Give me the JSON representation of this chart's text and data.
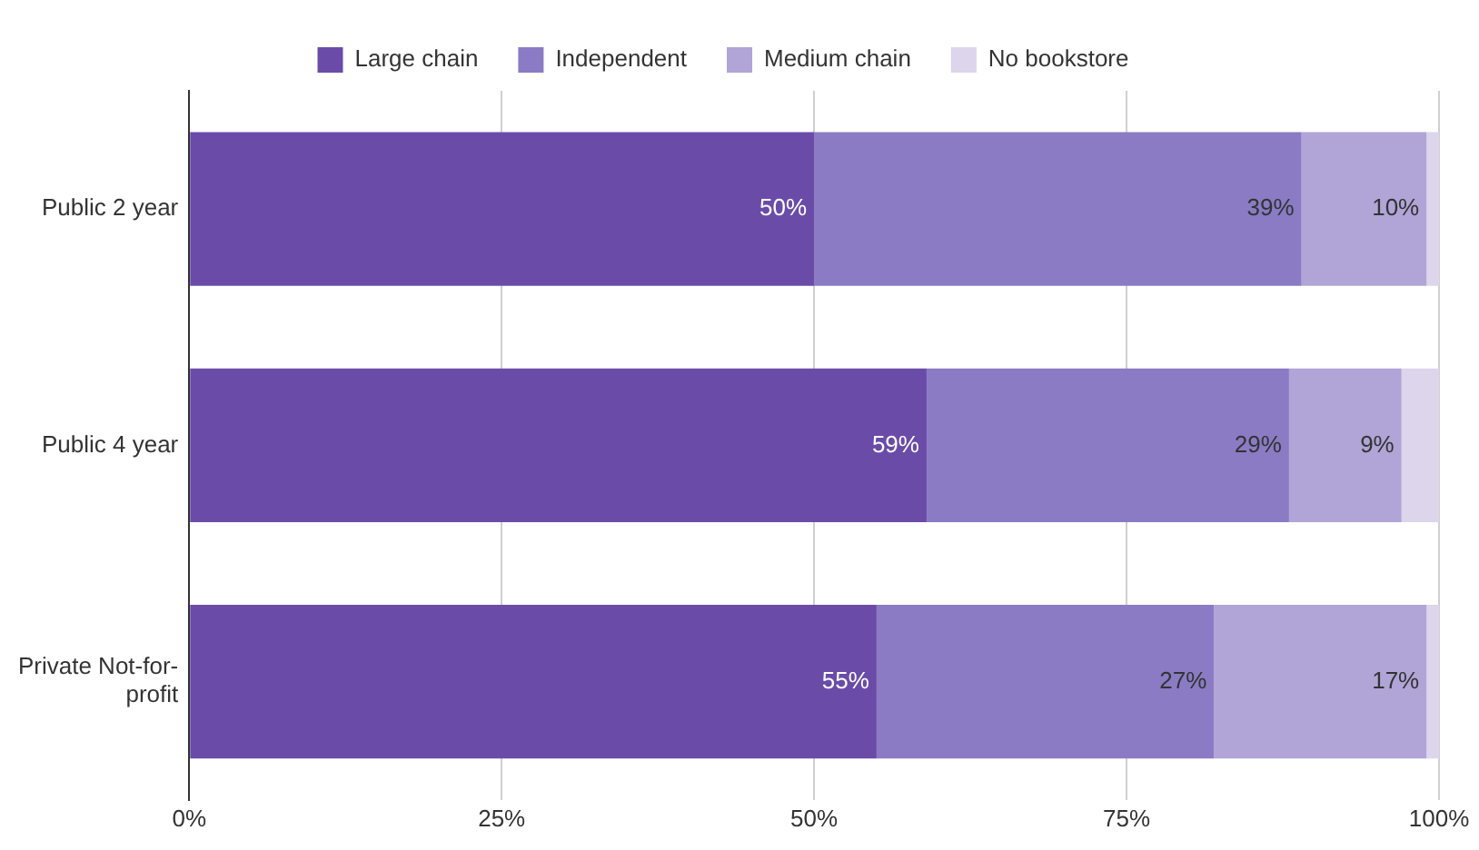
{
  "chart_data": {
    "type": "bar",
    "orientation": "horizontal",
    "stacked": true,
    "categories": [
      "Public 2 year",
      "Public 4 year",
      "Private Not-for-profit"
    ],
    "series": [
      {
        "name": "Large chain",
        "color": "#6a4ca8",
        "values": [
          50,
          59,
          55
        ],
        "value_labels": [
          "50%",
          "59%",
          "55%"
        ]
      },
      {
        "name": "Independent",
        "color": "#8b7bc4",
        "values": [
          39,
          29,
          27
        ],
        "value_labels": [
          "39%",
          "29%",
          "27%"
        ]
      },
      {
        "name": "Medium chain",
        "color": "#b1a4d6",
        "values": [
          10,
          9,
          17
        ],
        "value_labels": [
          "10%",
          "9%",
          "17%"
        ]
      },
      {
        "name": "No bookstore",
        "color": "#dcd5ec",
        "values": [
          1,
          3,
          1
        ],
        "value_labels": [
          null,
          null,
          null
        ]
      }
    ],
    "xlim": [
      0,
      100
    ],
    "xticks": [
      {
        "value": 0,
        "label": "0%"
      },
      {
        "value": 25,
        "label": "25%"
      },
      {
        "value": 50,
        "label": "50%"
      },
      {
        "value": 75,
        "label": "75%"
      },
      {
        "value": 100,
        "label": "100%"
      }
    ],
    "grid": "x",
    "legend": "top"
  }
}
